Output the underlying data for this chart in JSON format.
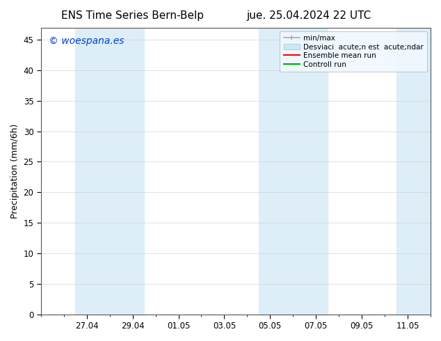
{
  "title_left": "ENS Time Series Bern-Belp",
  "title_right": "jue. 25.04.2024 22 UTC",
  "ylabel": "Precipitation (mm/6h)",
  "watermark": "© woespana.es",
  "ylim": [
    0,
    47
  ],
  "yticks": [
    0,
    5,
    10,
    15,
    20,
    25,
    30,
    35,
    40,
    45
  ],
  "xtick_labels": [
    "27.04",
    "29.04",
    "01.05",
    "03.05",
    "05.05",
    "07.05",
    "09.05",
    "11.05"
  ],
  "xtick_positions": [
    2,
    4,
    6,
    8,
    10,
    12,
    14,
    16
  ],
  "xlim": [
    0,
    17
  ],
  "bg_color": "#ffffff",
  "plot_bg_color": "#ffffff",
  "band_color": "#ddeef8",
  "shaded_intervals": [
    [
      1.5,
      3.0
    ],
    [
      3.0,
      4.5
    ],
    [
      9.5,
      11.0
    ],
    [
      11.0,
      12.5
    ],
    [
      15.5,
      17.0
    ]
  ],
  "legend_minmax_color": "#aaaaaa",
  "legend_desviac_facecolor": "#cce8f8",
  "legend_desviac_edgecolor": "#aabbcc",
  "legend_ensemble_color": "#ff0000",
  "legend_control_color": "#00aa00",
  "legend_label_minmax": "min/max",
  "legend_label_desviac": "Desviaci  acute;n est  acute;ndar",
  "legend_label_ensemble": "Ensemble mean run",
  "legend_label_control": "Controll run",
  "title_fontsize": 11,
  "tick_fontsize": 8.5,
  "ylabel_fontsize": 9,
  "watermark_fontsize": 10,
  "legend_fontsize": 7.5
}
